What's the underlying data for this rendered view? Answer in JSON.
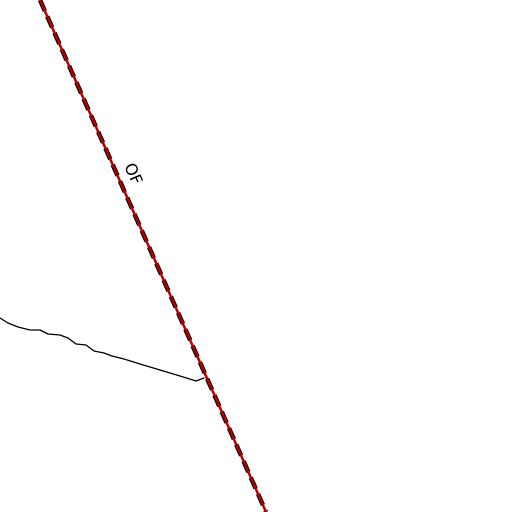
{
  "map": {
    "background_color": "#ffffff",
    "route_line": {
      "label": "OF",
      "casing_color": "#000000",
      "fill_color": "#b30000",
      "style": "dashed-red-with-black-casing"
    },
    "boundary_line": {
      "color": "#000000",
      "style": "thin-solid"
    }
  }
}
